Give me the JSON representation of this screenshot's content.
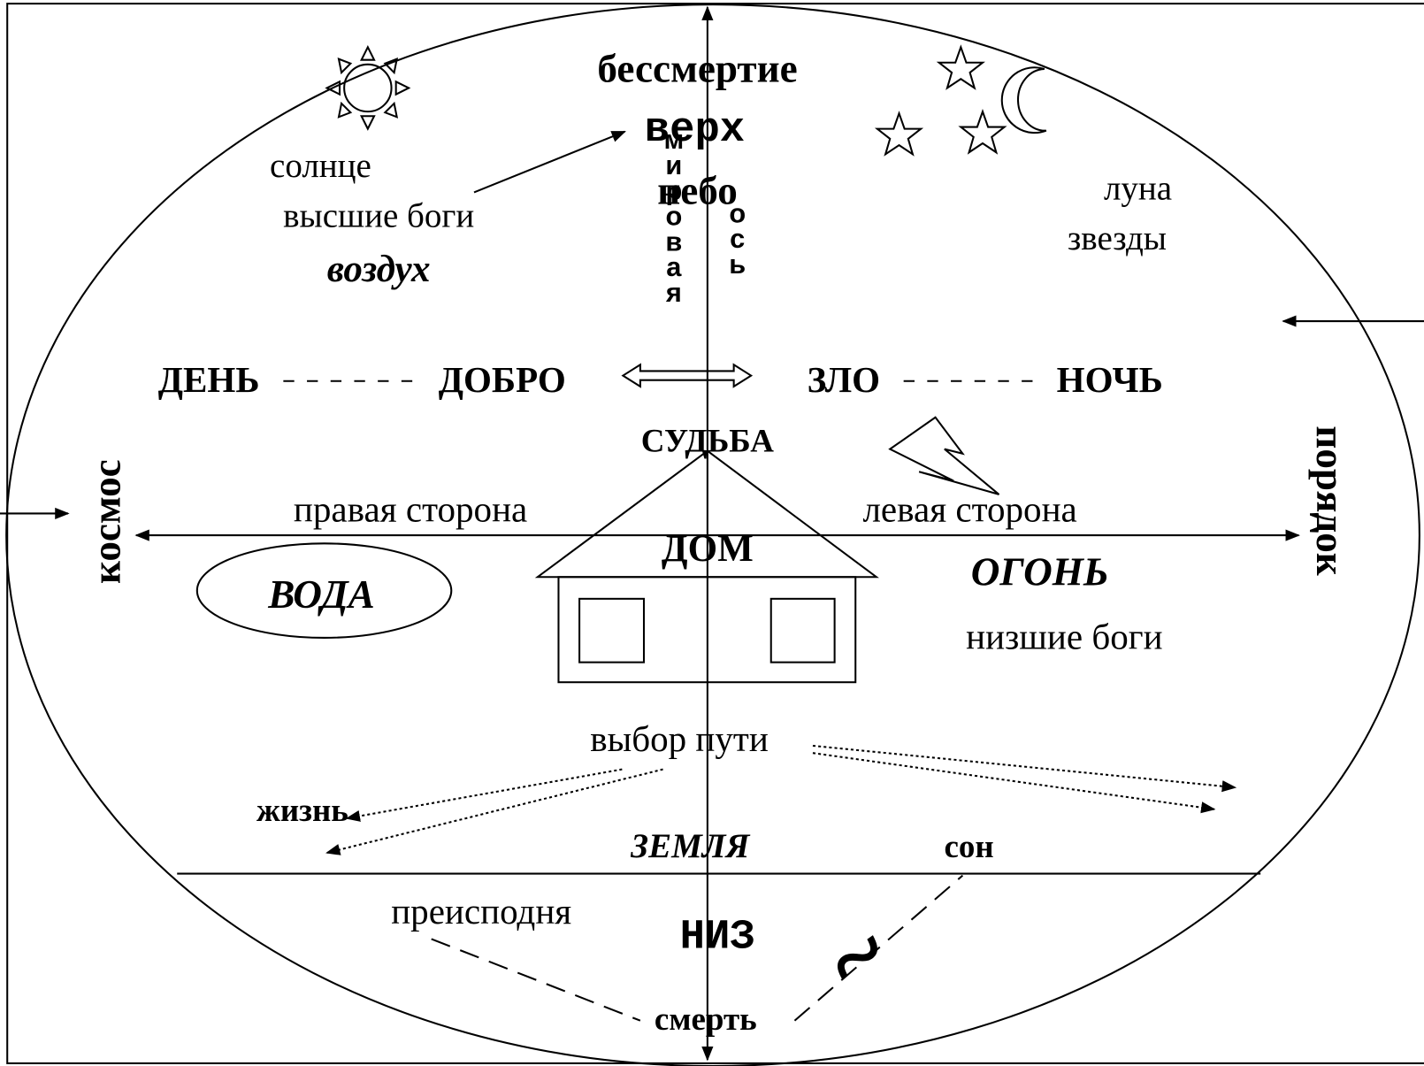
{
  "top": {
    "immortality": "бессмертие",
    "up": "верх",
    "sky": "небо",
    "axis_word1": "мировая",
    "axis_word2": "ось"
  },
  "upper_left": {
    "sun": "солнце",
    "gods": "высшие боги",
    "element": "воздух"
  },
  "upper_right": {
    "moon": "луна",
    "stars": "звезды"
  },
  "opposition": {
    "day": "ДЕНЬ",
    "good": "ДОБРО",
    "evil": "ЗЛО",
    "night": "НОЧЬ"
  },
  "fate": "СУДЬБА",
  "sides": {
    "cosmos": "космос",
    "order": "порядок",
    "right_side": "правая сторона",
    "left_side": "левая сторона"
  },
  "house": "ДОМ",
  "elements": {
    "water": "ВОДА",
    "fire": "ОГОНЬ",
    "lower_gods": "низшие боги",
    "earth": "ЗЕМЛЯ"
  },
  "paths": {
    "choice": "выбор пути",
    "life": "жизнь",
    "sleep": "сон"
  },
  "bottom": {
    "underworld": "преисподня",
    "down": "НИЗ",
    "death": "смерть",
    "similar": "~"
  }
}
